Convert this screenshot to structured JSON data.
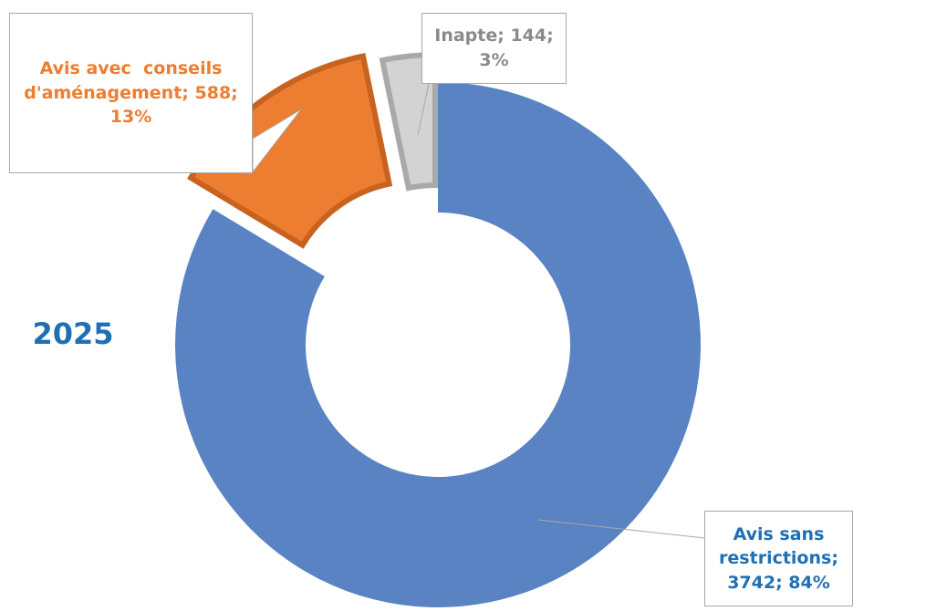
{
  "chart_data": {
    "type": "donut",
    "title": "2025",
    "values": [
      3742,
      588,
      144
    ],
    "value_labels": [
      "Avis sans restrictions; 3742; 84%",
      "Avis avec  conseils d'aménagement; 588; 13%",
      "Inapte; 144; 3%"
    ],
    "colors": [
      "#5a83c3",
      "#ed7d31",
      "#d3d3d3"
    ]
  }
}
